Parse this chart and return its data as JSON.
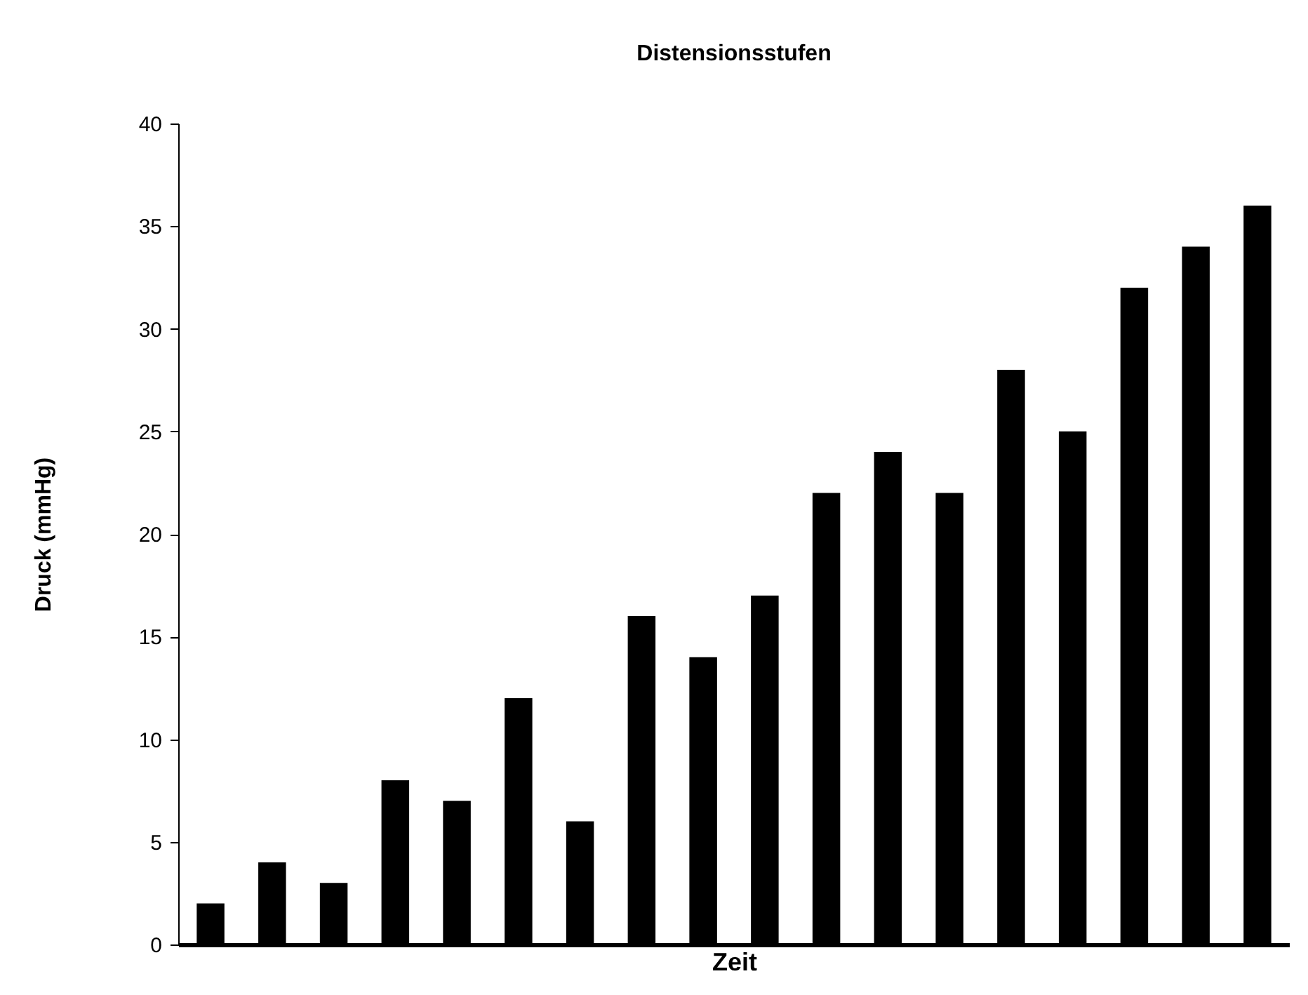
{
  "chart_data": {
    "type": "bar",
    "title": "Distensionsstufen",
    "xlabel": "Zeit",
    "ylabel": "Druck (mmHg)",
    "categories": [
      null,
      null,
      null,
      null,
      null,
      null,
      null,
      null,
      null,
      null,
      null,
      null,
      null,
      null,
      null,
      null,
      null,
      null
    ],
    "values": [
      2,
      4,
      3,
      8,
      7,
      12,
      6,
      16,
      14,
      17,
      22,
      24,
      22,
      28,
      25,
      32,
      34,
      36
    ],
    "color": "#000000",
    "ylim": [
      0,
      40
    ],
    "yticks": [
      0,
      5,
      10,
      15,
      20,
      25,
      30,
      35,
      40
    ],
    "grid": false,
    "tick_labels": "y"
  }
}
